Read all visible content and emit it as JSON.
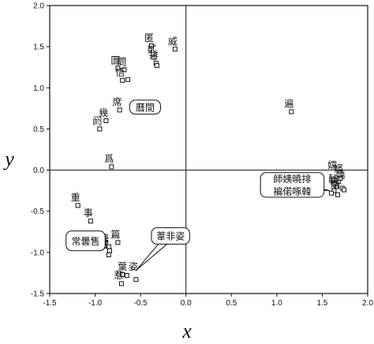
{
  "chart_data": {
    "type": "scatter",
    "title": "",
    "xlabel": "x",
    "ylabel": "y",
    "xlim": [
      -1.5,
      2.0
    ],
    "ylim": [
      -1.5,
      2.0
    ],
    "x_ticks": [
      "-1.5",
      "-1.0",
      "-0.5",
      "0.0",
      "0.5",
      "1.0",
      "1.5",
      "2.0"
    ],
    "y_ticks": [
      "-1.5",
      "-1.0",
      "-0.5",
      "0.0",
      "0.5",
      "1.0",
      "1.5",
      "2.0"
    ],
    "reference_lines": {
      "x": 0,
      "y": 0
    },
    "marker": "open-square",
    "points": [
      {
        "x": -0.38,
        "y": 1.51,
        "label": "匿"
      },
      {
        "x": -0.35,
        "y": 1.37,
        "label": "貳"
      },
      {
        "x": -0.33,
        "y": 1.3,
        "label": "排"
      },
      {
        "x": -0.12,
        "y": 1.47,
        "label": "威"
      },
      {
        "x": -0.75,
        "y": 1.24,
        "label": "圄"
      },
      {
        "x": -0.68,
        "y": 1.22,
        "label": "問"
      },
      {
        "x": -0.7,
        "y": 1.09,
        "label": "悟"
      },
      {
        "x": -0.64,
        "y": 1.1,
        "label": ""
      },
      {
        "x": -0.32,
        "y": 1.27,
        "label": ""
      },
      {
        "x": -0.73,
        "y": 0.73,
        "label": "席"
      },
      {
        "x": -0.88,
        "y": 0.6,
        "label": "幾"
      },
      {
        "x": -0.95,
        "y": 0.5,
        "label": "阏"
      },
      {
        "x": -0.82,
        "y": 0.04,
        "label": "爲"
      },
      {
        "x": 1.16,
        "y": 0.71,
        "label": "遍"
      },
      {
        "x": -1.19,
        "y": -0.43,
        "label": "重"
      },
      {
        "x": -1.05,
        "y": -0.62,
        "label": "事"
      },
      {
        "x": -0.75,
        "y": -0.88,
        "label": "篇"
      },
      {
        "x": -0.85,
        "y": -0.93,
        "label": ""
      },
      {
        "x": -0.84,
        "y": -0.98,
        "label": ""
      },
      {
        "x": -0.85,
        "y": -1.03,
        "label": ""
      },
      {
        "x": -0.7,
        "y": -1.27,
        "label": ""
      },
      {
        "x": -0.65,
        "y": -1.28,
        "label": ""
      },
      {
        "x": -0.71,
        "y": -1.38,
        "label": ""
      },
      {
        "x": -0.55,
        "y": -1.33,
        "label": ""
      },
      {
        "x": 1.62,
        "y": -0.12,
        "label": ""
      },
      {
        "x": 1.64,
        "y": -0.17,
        "label": ""
      },
      {
        "x": 1.66,
        "y": -0.2,
        "label": ""
      },
      {
        "x": 1.68,
        "y": -0.14,
        "label": ""
      },
      {
        "x": 1.7,
        "y": -0.1,
        "label": ""
      },
      {
        "x": 1.63,
        "y": -0.25,
        "label": ""
      },
      {
        "x": 1.67,
        "y": -0.3,
        "label": ""
      },
      {
        "x": 1.72,
        "y": -0.22,
        "label": ""
      },
      {
        "x": 1.74,
        "y": -0.24,
        "label": ""
      },
      {
        "x": 1.6,
        "y": -0.28,
        "label": ""
      }
    ],
    "cluster_glyphs": [
      {
        "text": "鋒",
        "x": -0.9,
        "y": -0.87
      },
      {
        "text": "躍",
        "x": -0.9,
        "y": -0.95
      },
      {
        "text": "葉",
        "x": -0.7,
        "y": -1.21
      },
      {
        "text": "姿",
        "x": -0.58,
        "y": -1.21
      },
      {
        "text": "惹",
        "x": -0.74,
        "y": -1.32
      },
      {
        "text": "嬬",
        "x": 1.61,
        "y": 0.02
      },
      {
        "text": "嬪",
        "x": 1.68,
        "y": -0.02
      },
      {
        "text": "嬌",
        "x": 1.7,
        "y": -0.1
      },
      {
        "text": "醵",
        "x": 1.62,
        "y": -0.15
      },
      {
        "text": "僀",
        "x": 1.64,
        "y": -0.22
      }
    ],
    "annotations": [
      {
        "lines": [
          "曆間"
        ],
        "box": {
          "x": -0.62,
          "y": 0.68,
          "w": 0.34,
          "h": 0.17
        },
        "pointer": [
          -0.58,
          0.8
        ]
      },
      {
        "lines": [
          "師姨曉排",
          "褊偌啄韓"
        ],
        "box": {
          "x": 0.82,
          "y": -0.33,
          "w": 0.7,
          "h": 0.3
        },
        "pointer": [
          1.58,
          -0.25
        ]
      },
      {
        "lines": [
          "常曇售"
        ],
        "box": {
          "x": -1.32,
          "y": -0.98,
          "w": 0.43,
          "h": 0.24
        },
        "pointer": [
          -0.87,
          -0.9
        ]
      },
      {
        "lines": [
          "葦非姿"
        ],
        "box": {
          "x": -0.38,
          "y": -0.9,
          "w": 0.42,
          "h": 0.2
        },
        "pointer": [
          -0.55,
          -1.22
        ]
      }
    ]
  }
}
